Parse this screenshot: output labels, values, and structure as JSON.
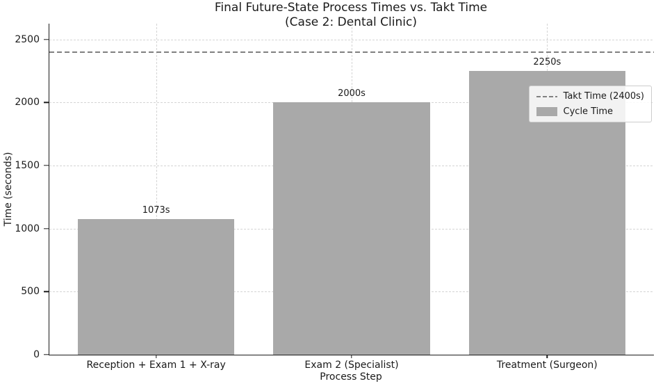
{
  "chart_data": {
    "type": "bar",
    "title": "Final Future-State Process Times vs. Takt Time",
    "subtitle": "(Case 2: Dental Clinic)",
    "categories": [
      "Reception + Exam 1 + X-ray",
      "Exam 2 (Specialist)",
      "Treatment (Surgeon)"
    ],
    "values": [
      1073,
      2000,
      2250
    ],
    "bar_labels": [
      "1073s",
      "2000s",
      "2250s"
    ],
    "xlabel": "Process Step",
    "ylabel": "Time (seconds)",
    "ylim": [
      0,
      2500
    ],
    "yticks": [
      0,
      500,
      1000,
      1500,
      2000,
      2500
    ],
    "grid": true,
    "takt_line": {
      "value": 2400
    },
    "legend": {
      "position": "upper right",
      "takt_label": "Takt Time (2400s)",
      "cycle_label": "Cycle Time"
    },
    "colors": {
      "bar": "#a9a9a9",
      "takt_line": "#808080",
      "grid": "#d4d4d4",
      "spine": "#1a1a1a",
      "text": "#1a1a1a",
      "legend_border": "#cccccc",
      "legend_bg": "rgba(255,255,255,0.85)"
    }
  }
}
